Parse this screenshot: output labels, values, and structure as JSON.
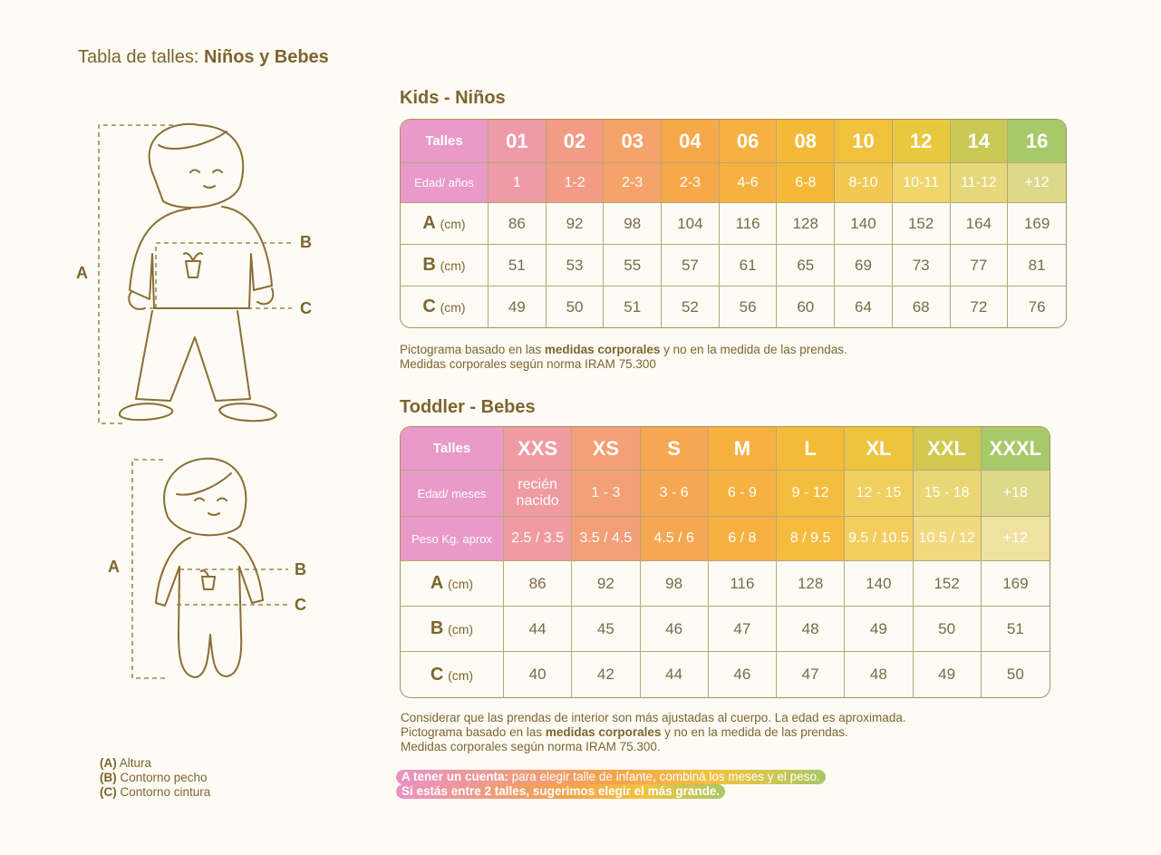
{
  "title": {
    "prefix": "Tabla de talles:",
    "bold": "Niños y Bebes"
  },
  "kids": {
    "heading": "Kids - Niños",
    "head_rows": [
      {
        "label": "Talles",
        "values": [
          "01",
          "02",
          "03",
          "04",
          "06",
          "08",
          "10",
          "12",
          "14",
          "16"
        ]
      },
      {
        "label": "Edad/ años",
        "values": [
          "1",
          "1-2",
          "2-3",
          "2-3",
          "4-6",
          "6-8",
          "8-10",
          "10-11",
          "11-12",
          "+12"
        ]
      }
    ],
    "rows": [
      {
        "letter": "A",
        "unit": "(cm)",
        "values": [
          86,
          92,
          98,
          104,
          116,
          128,
          140,
          152,
          164,
          169
        ]
      },
      {
        "letter": "B",
        "unit": "(cm)",
        "values": [
          51,
          53,
          55,
          57,
          61,
          65,
          69,
          73,
          77,
          81
        ]
      },
      {
        "letter": "C",
        "unit": "(cm)",
        "values": [
          49,
          50,
          51,
          52,
          56,
          60,
          64,
          68,
          72,
          76
        ]
      }
    ],
    "notes": [
      [
        "Pictograma basado en las ",
        "medidas corporales",
        " y no en la medida de las prendas."
      ],
      [
        "Medidas corporales según norma IRAM 75.300"
      ]
    ]
  },
  "toddler": {
    "heading": "Toddler - Bebes",
    "head_rows": [
      {
        "label": "Talles",
        "values": [
          "XXS",
          "XS",
          "S",
          "M",
          "L",
          "XL",
          "XXL",
          "XXXL"
        ]
      },
      {
        "label": "Edad/ meses",
        "values": [
          "recién nacido",
          "1 - 3",
          "3 - 6",
          "6 - 9",
          "9 - 12",
          "12 - 15",
          "15 - 18",
          "+18"
        ]
      },
      {
        "label": "Peso Kg. aprox",
        "values": [
          "2.5 / 3.5",
          "3.5 / 4.5",
          "4.5 / 6",
          "6 / 8",
          "8 / 9.5",
          "9.5 / 10.5",
          "10.5 / 12",
          "+12"
        ]
      }
    ],
    "rows": [
      {
        "letter": "A",
        "unit": "(cm)",
        "values": [
          86,
          92,
          98,
          116,
          128,
          140,
          152,
          169
        ]
      },
      {
        "letter": "B",
        "unit": "(cm)",
        "values": [
          44,
          45,
          46,
          47,
          48,
          49,
          50,
          51
        ]
      },
      {
        "letter": "C",
        "unit": "(cm)",
        "values": [
          40,
          42,
          44,
          46,
          47,
          48,
          49,
          50
        ]
      }
    ],
    "notes": [
      [
        "Considerar que las prendas de interior son más ajustadas al cuerpo. La edad es aproximada."
      ],
      [
        "Pictograma basado en las ",
        "medidas corporales",
        " y no en la medida de las prendas."
      ],
      [
        "Medidas corporales según norma IRAM 75.300."
      ]
    ]
  },
  "figures": {
    "kid": [
      "A",
      "B",
      "C"
    ],
    "baby": [
      "A",
      "B",
      "C"
    ]
  },
  "legend": [
    [
      "(A)",
      " Altura"
    ],
    [
      "(B)",
      " Contorno pecho"
    ],
    [
      "(C)",
      " Contorno cintura"
    ]
  ],
  "callout": [
    [
      "A tener un cuenta:",
      " para elegir talle de infante, combiná los meses y el peso."
    ],
    [
      "Si estás entre 2 talles, sugerimos elegir el más grande."
    ]
  ]
}
